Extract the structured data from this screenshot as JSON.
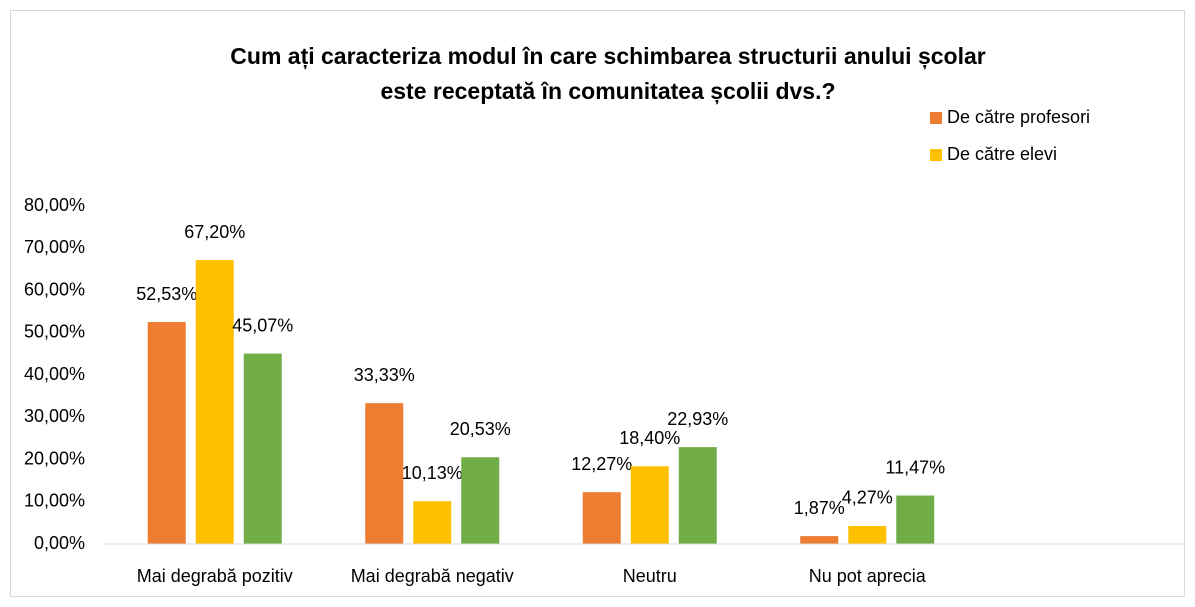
{
  "chart_data": {
    "type": "bar",
    "title": [
      "Cum ați caracteriza modul în care schimbarea structurii anului școlar",
      "este receptată în comunitatea școlii dvs.?"
    ],
    "categories": [
      "Mai degrabă pozitiv",
      "Mai degrabă negativ",
      "Neutru",
      "Nu pot aprecia"
    ],
    "series": [
      {
        "name": "De către profesori",
        "color": "#ED7D31",
        "values": [
          52.53,
          33.33,
          12.27,
          1.87
        ],
        "value_labels": [
          "52,53%",
          "33,33%",
          "12,27%",
          "1,87%"
        ]
      },
      {
        "name": "De către elevi",
        "color": "#FFC000",
        "values": [
          67.2,
          10.13,
          18.4,
          4.27
        ],
        "value_labels": [
          "67,20%",
          "10,13%",
          "18,40%",
          "4,27%"
        ]
      },
      {
        "name": null,
        "color": "#70AD47",
        "values": [
          45.07,
          20.53,
          22.93,
          11.47
        ],
        "value_labels": [
          "45,07%",
          "20,53%",
          "22,93%",
          "11,47%"
        ]
      }
    ],
    "ylim": [
      0,
      80
    ],
    "yticks": [
      {
        "value": 0,
        "label": "0,00%"
      },
      {
        "value": 10,
        "label": "10,00%"
      },
      {
        "value": 20,
        "label": "20,00%"
      },
      {
        "value": 30,
        "label": "30,00%"
      },
      {
        "value": 40,
        "label": "40,00%"
      },
      {
        "value": 50,
        "label": "50,00%"
      },
      {
        "value": 60,
        "label": "60,00%"
      },
      {
        "value": 70,
        "label": "70,00%"
      },
      {
        "value": 80,
        "label": "80,00%"
      }
    ],
    "grid": false,
    "legend": "top-right"
  }
}
